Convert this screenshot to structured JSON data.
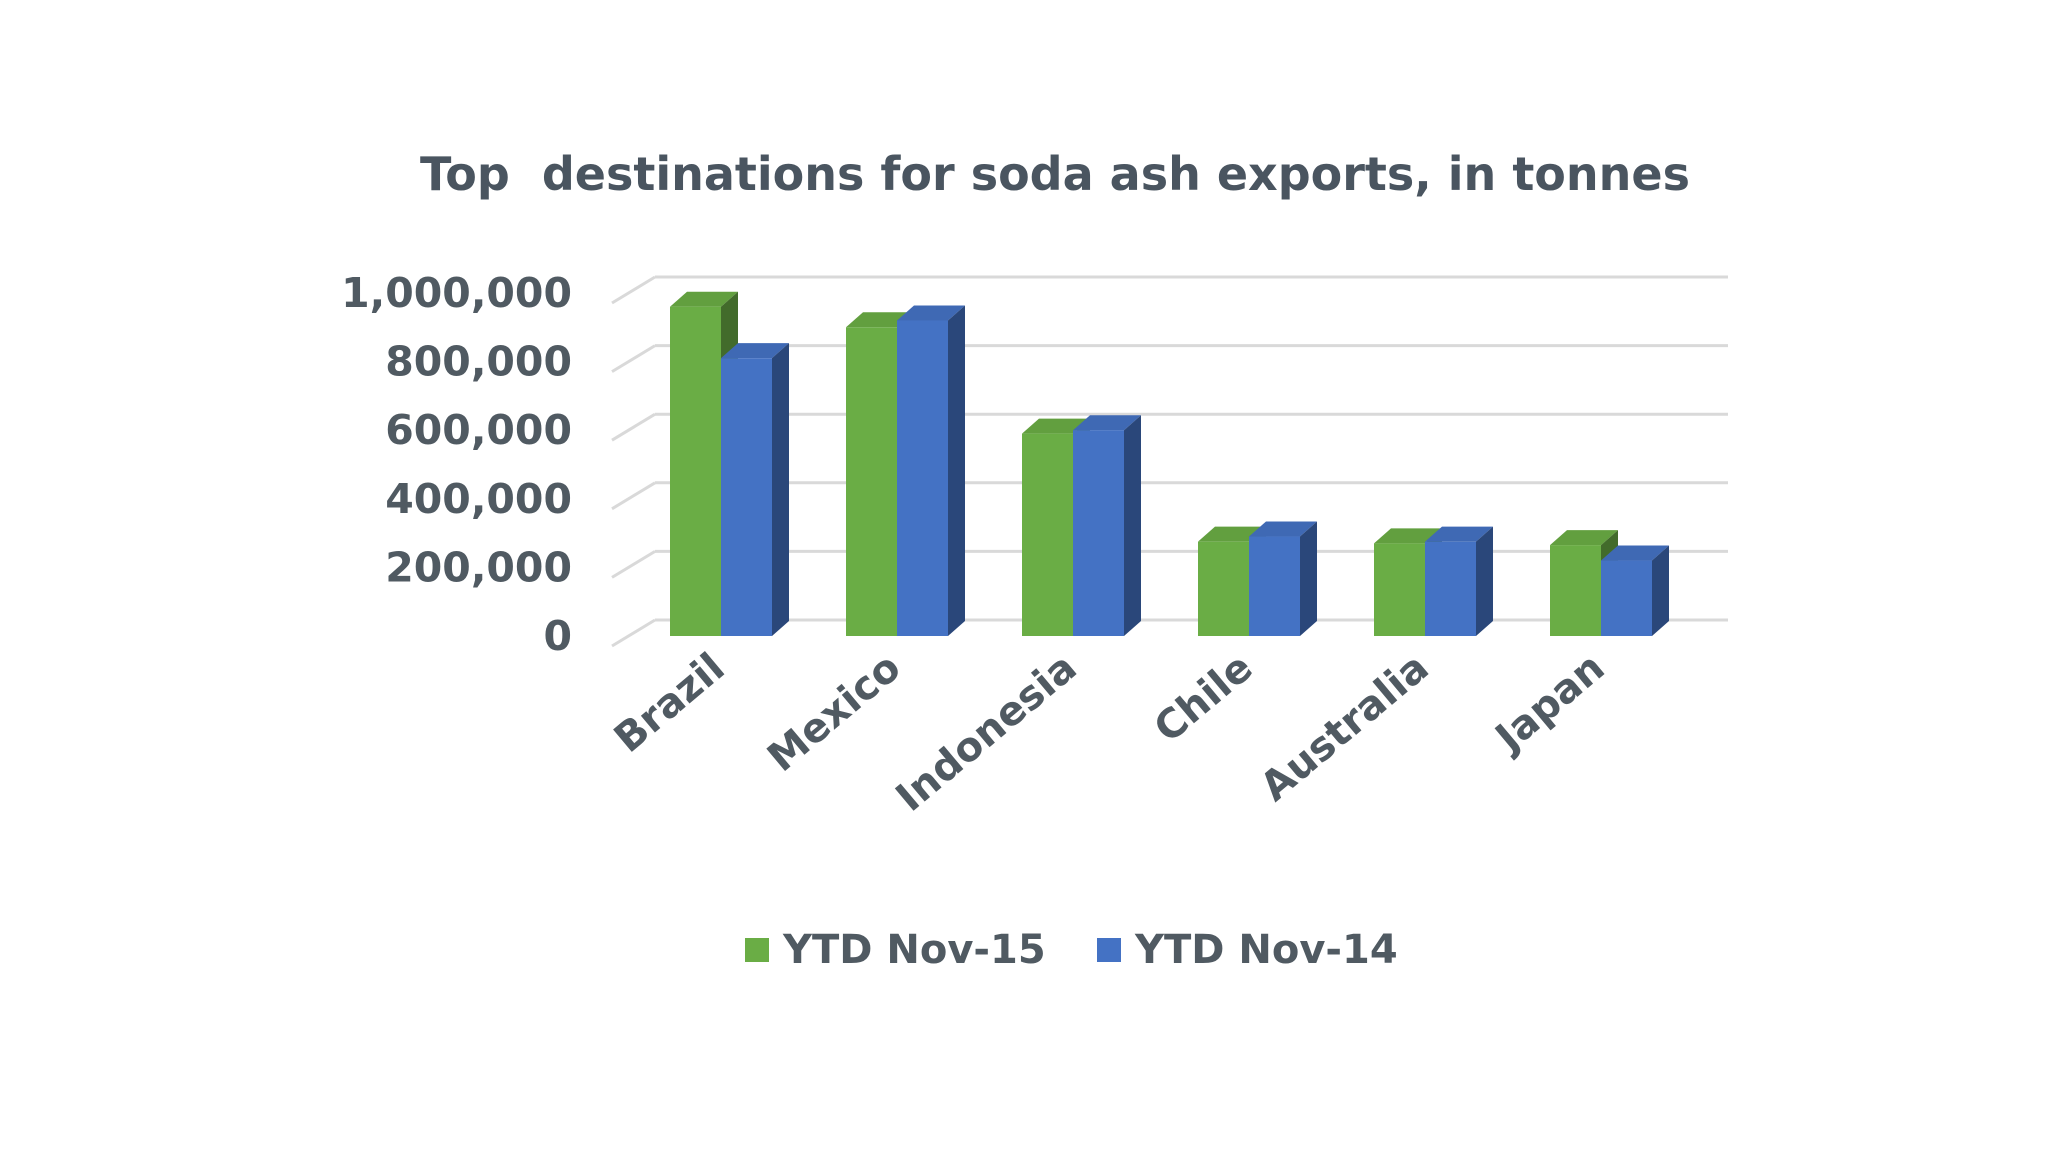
{
  "chart_data": {
    "type": "bar",
    "title": "Top  destinations for soda ash exports, in tonnes",
    "xlabel": "",
    "ylabel": "",
    "categories": [
      "Brazil",
      "Mexico",
      "Indonesia",
      "Chile",
      "Australia",
      "Japan"
    ],
    "series": [
      {
        "name": "YTD Nov-15",
        "color": "#6aad45",
        "values": [
          960000,
          900000,
          590000,
          275000,
          270000,
          265000
        ]
      },
      {
        "name": "YTD Nov-14",
        "color": "#4472c4",
        "values": [
          810000,
          920000,
          600000,
          290000,
          275000,
          220000
        ]
      }
    ],
    "ylim": [
      0,
      1000000
    ],
    "yticks": [
      0,
      200000,
      400000,
      600000,
      800000,
      1000000
    ],
    "ytick_labels": [
      "0",
      "200,000",
      "400,000",
      "600,000",
      "800,000",
      "1,000,000"
    ],
    "grid": true,
    "bar_style": "3d",
    "legend_position": "bottom"
  }
}
